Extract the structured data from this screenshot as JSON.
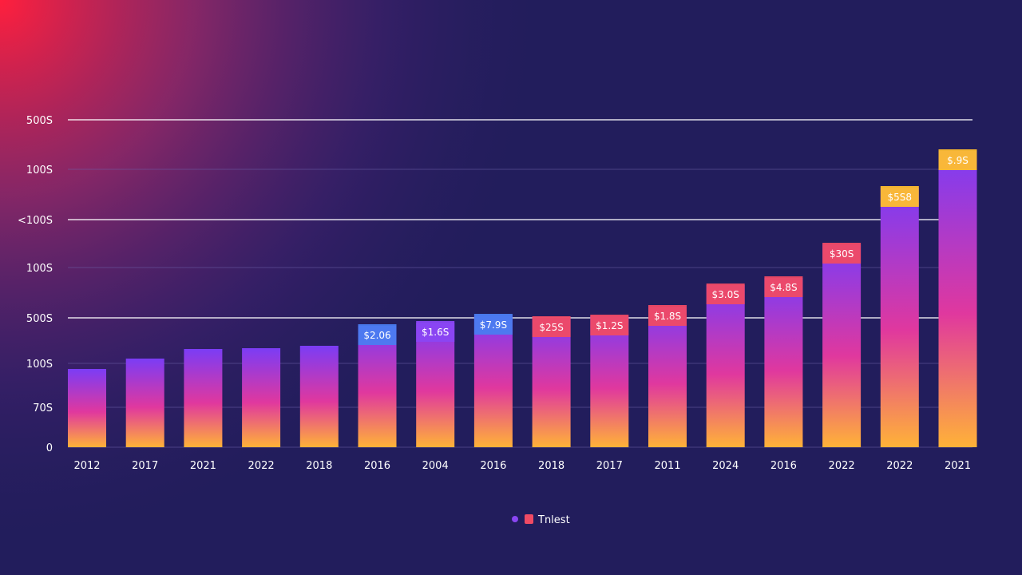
{
  "colors": {
    "background": "#221d5c",
    "glow": "#ff1f3d",
    "bar_top_purple": "#7b3cf5",
    "bar_mid_pink": "#e0389e",
    "bar_bottom_orange": "#ffb238",
    "label_red": "#f04a64",
    "label_blue": "#4a7cf0",
    "label_yellow": "#ffbe2e",
    "label_purple": "#8a46f2",
    "label_navy": "#2a2f7a"
  },
  "chart_data": {
    "type": "bar",
    "title": "",
    "xlabel": "",
    "ylabel": "",
    "grid": true,
    "y_tick_labels": [
      "0",
      "70S",
      "100S",
      "500S",
      "100S",
      "<100S",
      "100S",
      "500S"
    ],
    "categories": [
      "2012",
      "2017",
      "2021",
      "2022",
      "2018",
      "2016",
      "2004",
      "2016",
      "2018",
      "2017",
      "2011",
      "2024",
      "2016",
      "2022",
      "2022",
      "2021"
    ],
    "values": [
      98,
      111,
      123,
      124,
      127,
      152,
      156,
      165,
      162,
      164,
      176,
      203,
      212,
      254,
      325,
      371
    ],
    "data_labels": [
      "",
      "",
      "",
      "",
      "",
      "$2.06",
      "$1.6S",
      "$7.9S",
      "$25S",
      "$1.2S",
      "$1.8S",
      "$3.0S",
      "$4.8S",
      "$30S",
      "$5S8",
      "$.9S"
    ],
    "label_colors": [
      "",
      "",
      "",
      "",
      "",
      "#4a7cf0",
      "#8a46f2",
      "#4a7cf0",
      "#f04a64",
      "#f04a64",
      "#f04a64",
      "#f04a64",
      "#f04a64",
      "#f04a64",
      "#ffbe2e",
      "#ffbe2e"
    ],
    "legend": [
      {
        "label": "Tnlest",
        "color": "#f04a64"
      }
    ],
    "legend_position": "bottom-center"
  }
}
